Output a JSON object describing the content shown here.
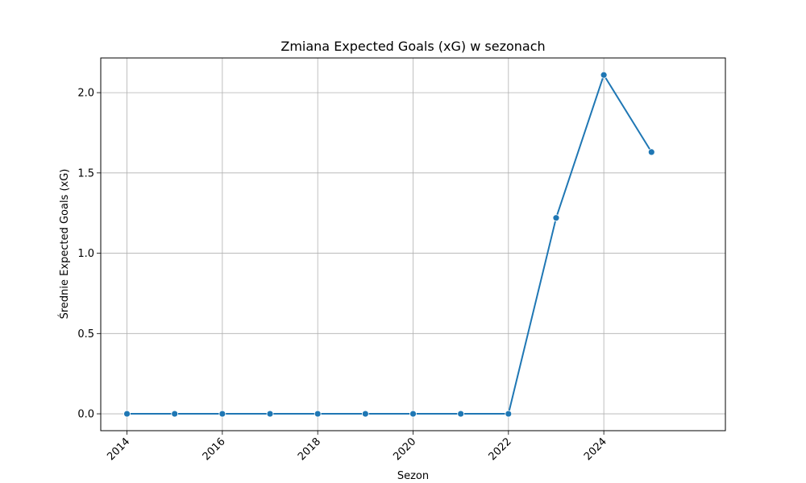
{
  "chart_data": {
    "type": "line",
    "title": "Zmiana Expected Goals (xG) w sezonach",
    "xlabel": "Sezon",
    "ylabel": "Średnie Expected Goals (xG)",
    "x": [
      2014,
      2015,
      2016,
      2017,
      2018,
      2019,
      2020,
      2021,
      2022,
      2023,
      2024,
      2025
    ],
    "series": [
      {
        "values": [
          0,
          0,
          0,
          0,
          0,
          0,
          0,
          0,
          0,
          1.22,
          2.11,
          1.63
        ]
      }
    ],
    "xticks": [
      "2014",
      "2016",
      "2018",
      "2020",
      "2022",
      "2024"
    ],
    "yticks": [
      "0.0",
      "0.5",
      "1.0",
      "1.5",
      "2.0"
    ],
    "xlim": [
      2013.45,
      2026.55
    ],
    "ylim": [
      -0.105,
      2.216
    ],
    "grid": true,
    "line_color": "#1f77b4",
    "marker": "circle"
  }
}
